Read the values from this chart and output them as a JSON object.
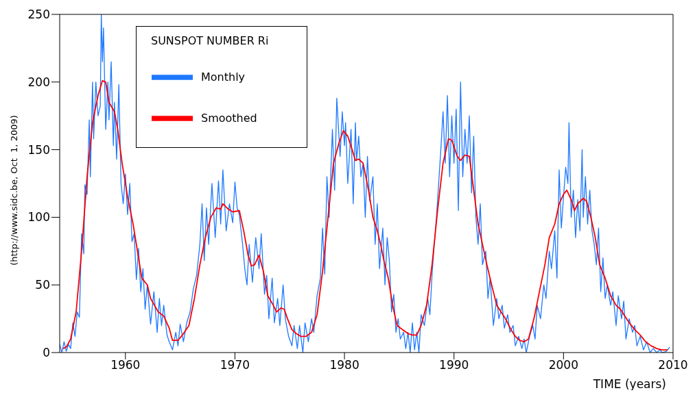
{
  "chart_data": {
    "type": "line",
    "xlabel": "TIME (years)",
    "legend_title": "SUNSPOT NUMBER Ri",
    "annotations": [
      "(http://www.sidc.be, Oct  1, 2009)"
    ],
    "xlim": [
      1954,
      2010
    ],
    "xticks": [
      1960,
      1970,
      1980,
      1990,
      2000,
      2010
    ],
    "ylim": [
      0,
      250
    ],
    "yticks": [
      0,
      50,
      100,
      150,
      200,
      250
    ],
    "legend": "top left",
    "line_style": "solid",
    "marker": "none",
    "series": [
      {
        "name": "Monthly",
        "color": "#1e78ff",
        "x": [
          1954.0,
          1954.2,
          1954.4,
          1954.6,
          1954.8,
          1955.0,
          1955.2,
          1955.4,
          1955.6,
          1955.8,
          1956.0,
          1956.2,
          1956.3,
          1956.5,
          1956.7,
          1956.8,
          1957.0,
          1957.1,
          1957.3,
          1957.5,
          1957.7,
          1957.8,
          1957.9,
          1958.0,
          1958.2,
          1958.4,
          1958.5,
          1958.7,
          1958.9,
          1959.0,
          1959.2,
          1959.4,
          1959.6,
          1959.8,
          1960.0,
          1960.2,
          1960.4,
          1960.6,
          1960.8,
          1961.0,
          1961.2,
          1961.4,
          1961.6,
          1961.8,
          1962.0,
          1962.3,
          1962.6,
          1962.9,
          1963.1,
          1963.3,
          1963.5,
          1963.8,
          1964.0,
          1964.3,
          1964.6,
          1964.8,
          1965.0,
          1965.3,
          1965.6,
          1965.9,
          1966.2,
          1966.5,
          1966.8,
          1967.0,
          1967.2,
          1967.4,
          1967.6,
          1967.9,
          1968.2,
          1968.5,
          1968.7,
          1968.9,
          1969.2,
          1969.5,
          1969.8,
          1970.0,
          1970.2,
          1970.4,
          1970.7,
          1970.9,
          1971.1,
          1971.3,
          1971.6,
          1971.9,
          1972.2,
          1972.4,
          1972.7,
          1972.9,
          1973.1,
          1973.4,
          1973.6,
          1973.9,
          1974.1,
          1974.4,
          1974.6,
          1974.9,
          1975.2,
          1975.4,
          1975.7,
          1975.9,
          1976.2,
          1976.4,
          1976.7,
          1977.0,
          1977.2,
          1977.5,
          1977.8,
          1978.0,
          1978.2,
          1978.4,
          1978.6,
          1978.9,
          1979.1,
          1979.3,
          1979.6,
          1979.8,
          1980.0,
          1980.1,
          1980.3,
          1980.6,
          1980.8,
          1981.0,
          1981.1,
          1981.3,
          1981.5,
          1981.7,
          1981.9,
          1982.1,
          1982.3,
          1982.6,
          1982.8,
          1983.0,
          1983.2,
          1983.5,
          1983.7,
          1983.9,
          1984.1,
          1984.3,
          1984.5,
          1984.7,
          1984.9,
          1985.1,
          1985.4,
          1985.6,
          1985.8,
          1986.0,
          1986.2,
          1986.4,
          1986.6,
          1986.8,
          1987.0,
          1987.3,
          1987.6,
          1987.8,
          1988.0,
          1988.2,
          1988.4,
          1988.6,
          1988.8,
          1989.0,
          1989.2,
          1989.4,
          1989.6,
          1989.8,
          1990.0,
          1990.2,
          1990.4,
          1990.5,
          1990.6,
          1990.8,
          1991.0,
          1991.2,
          1991.4,
          1991.6,
          1991.8,
          1992.0,
          1992.2,
          1992.4,
          1992.6,
          1992.9,
          1993.1,
          1993.3,
          1993.6,
          1993.9,
          1994.1,
          1994.4,
          1994.6,
          1994.9,
          1995.1,
          1995.4,
          1995.6,
          1995.9,
          1996.2,
          1996.4,
          1996.6,
          1996.9,
          1997.2,
          1997.4,
          1997.6,
          1997.9,
          1998.2,
          1998.4,
          1998.7,
          1998.9,
          1999.2,
          1999.4,
          1999.6,
          1999.8,
          2000.0,
          2000.2,
          2000.4,
          2000.5,
          2000.7,
          2000.9,
          2001.1,
          2001.3,
          2001.5,
          2001.7,
          2001.8,
          2002.0,
          2002.2,
          2002.4,
          2002.6,
          2002.8,
          2003.0,
          2003.2,
          2003.4,
          2003.6,
          2003.8,
          2004.0,
          2004.3,
          2004.5,
          2004.8,
          2005.0,
          2005.3,
          2005.5,
          2005.7,
          2006.0,
          2006.3,
          2006.5,
          2006.7,
          2007.0,
          2007.3,
          2007.6,
          2007.9,
          2008.2,
          2008.5,
          2008.8,
          2009.0,
          2009.4,
          2009.7
        ],
        "values": [
          6,
          0,
          8,
          1,
          6,
          3,
          22,
          12,
          30,
          26,
          88,
          73,
          124,
          117,
          172,
          130,
          200,
          158,
          200,
          175,
          182,
          250,
          215,
          240,
          165,
          200,
          172,
          215,
          153,
          185,
          143,
          198,
          125,
          110,
          132,
          102,
          125,
          82,
          88,
          54,
          77,
          45,
          62,
          32,
          50,
          21,
          45,
          15,
          40,
          20,
          35,
          13,
          8,
          2,
          15,
          5,
          21,
          8,
          22,
          30,
          47,
          57,
          80,
          110,
          68,
          107,
          80,
          125,
          85,
          127,
          95,
          135,
          90,
          110,
          96,
          126,
          107,
          102,
          80,
          62,
          50,
          80,
          52,
          85,
          62,
          88,
          43,
          57,
          25,
          55,
          22,
          40,
          20,
          50,
          25,
          12,
          5,
          20,
          3,
          20,
          0,
          22,
          8,
          25,
          15,
          42,
          55,
          92,
          58,
          130,
          100,
          165,
          120,
          188,
          145,
          178,
          153,
          170,
          125,
          165,
          110,
          170,
          142,
          160,
          130,
          140,
          100,
          145,
          112,
          130,
          80,
          110,
          62,
          92,
          50,
          85,
          68,
          30,
          43,
          15,
          25,
          10,
          15,
          3,
          15,
          0,
          22,
          2,
          15,
          0,
          28,
          20,
          40,
          28,
          58,
          80,
          100,
          125,
          150,
          178,
          140,
          190,
          130,
          175,
          140,
          180,
          105,
          155,
          200,
          130,
          165,
          140,
          175,
          118,
          160,
          100,
          80,
          110,
          65,
          75,
          40,
          55,
          20,
          40,
          25,
          35,
          18,
          28,
          15,
          20,
          5,
          12,
          3,
          10,
          0,
          12,
          20,
          10,
          35,
          25,
          50,
          40,
          75,
          62,
          90,
          55,
          135,
          92,
          115,
          137,
          125,
          170,
          100,
          120,
          85,
          113,
          90,
          150,
          100,
          130,
          95,
          120,
          90,
          80,
          65,
          92,
          45,
          70,
          40,
          50,
          35,
          45,
          20,
          42,
          25,
          38,
          10,
          25,
          15,
          20,
          5,
          12,
          2,
          8,
          0,
          3,
          0,
          2,
          0,
          1,
          4
        ]
      },
      {
        "name": "Smoothed",
        "color": "#ff0000",
        "x": [
          1954.3,
          1954.6,
          1955.0,
          1955.5,
          1956.0,
          1956.5,
          1957.0,
          1957.5,
          1957.9,
          1958.2,
          1958.5,
          1959.0,
          1959.3,
          1959.7,
          1960.2,
          1960.7,
          1961.0,
          1961.5,
          1962.0,
          1962.3,
          1963.0,
          1963.5,
          1964.0,
          1964.3,
          1964.8,
          1965.3,
          1965.8,
          1966.3,
          1966.8,
          1967.3,
          1967.8,
          1968.3,
          1968.7,
          1968.9,
          1969.4,
          1969.8,
          1970.4,
          1970.8,
          1971.2,
          1971.5,
          1971.8,
          1972.2,
          1972.6,
          1973.0,
          1973.5,
          1973.8,
          1974.2,
          1974.5,
          1974.8,
          1975.2,
          1975.6,
          1976.0,
          1976.5,
          1977.0,
          1977.5,
          1978.0,
          1978.5,
          1979.0,
          1979.5,
          1979.9,
          1980.3,
          1980.7,
          1981.0,
          1981.3,
          1981.7,
          1982.2,
          1982.6,
          1983.0,
          1983.3,
          1983.6,
          1984.0,
          1984.4,
          1984.8,
          1985.3,
          1985.8,
          1986.2,
          1986.6,
          1987.0,
          1987.5,
          1988.0,
          1988.5,
          1989.0,
          1989.5,
          1989.8,
          1990.3,
          1990.6,
          1991.0,
          1991.4,
          1991.8,
          1992.2,
          1992.6,
          1993.0,
          1993.5,
          1993.9,
          1994.3,
          1994.7,
          1995.2,
          1995.6,
          1996.0,
          1996.4,
          1996.8,
          1997.3,
          1997.8,
          1998.3,
          1998.7,
          1999.2,
          1999.6,
          2000.0,
          2000.3,
          2000.7,
          2001.0,
          2001.3,
          2001.8,
          2002.1,
          2002.5,
          2002.9,
          2003.3,
          2003.8,
          2004.3,
          2004.8,
          2005.2,
          2005.6,
          2006.0,
          2006.5,
          2007.0,
          2007.5,
          2008.0,
          2008.5,
          2009.0,
          2009.5
        ],
        "values": [
          3,
          4,
          10,
          30,
          75,
          130,
          170,
          190,
          201,
          200,
          185,
          178,
          165,
          140,
          115,
          95,
          80,
          55,
          50,
          40,
          30,
          27,
          18,
          9,
          9,
          14,
          20,
          40,
          65,
          85,
          100,
          107,
          106,
          110,
          106,
          104,
          105,
          90,
          72,
          64,
          65,
          72,
          60,
          42,
          35,
          30,
          33,
          32,
          25,
          17,
          14,
          12,
          12,
          15,
          28,
          60,
          100,
          140,
          155,
          164,
          160,
          150,
          142,
          143,
          140,
          120,
          100,
          90,
          80,
          68,
          55,
          35,
          20,
          17,
          14,
          13,
          13,
          20,
          35,
          65,
          105,
          140,
          158,
          157,
          145,
          142,
          146,
          145,
          120,
          95,
          80,
          65,
          48,
          35,
          30,
          25,
          17,
          12,
          9,
          8,
          10,
          25,
          45,
          65,
          85,
          95,
          110,
          117,
          120,
          113,
          105,
          110,
          114,
          112,
          100,
          85,
          65,
          55,
          42,
          35,
          32,
          27,
          22,
          17,
          13,
          8,
          5,
          3,
          2,
          2
        ]
      }
    ]
  }
}
